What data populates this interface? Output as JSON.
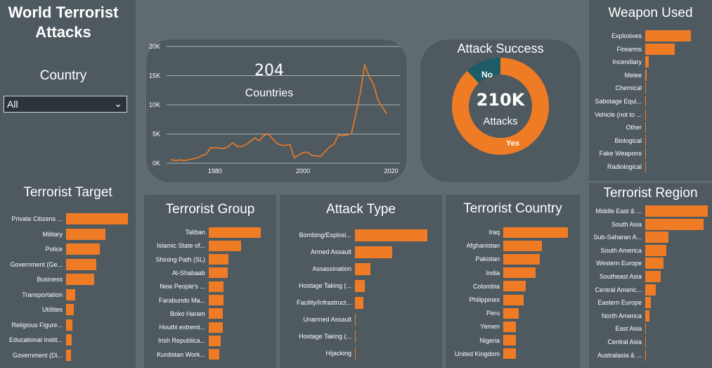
{
  "title": "World Terrorist Attacks",
  "country_filter": {
    "label": "Country",
    "value": "All"
  },
  "kpi": {
    "countries_value": "204",
    "countries_label": "Countries"
  },
  "attack_success": {
    "title": "Attack Success",
    "center_value": "210K",
    "center_label": "Attacks",
    "yes_label": "Yes",
    "no_label": "No",
    "yes_share": 0.88
  },
  "colors": {
    "accent": "#f07b25",
    "teal": "#1c5c66",
    "panel": "#4e5a60",
    "background": "#5f6b70"
  },
  "chart_data": [
    {
      "id": "timeline",
      "type": "line",
      "x": [
        1970,
        1971,
        1972,
        1973,
        1974,
        1975,
        1976,
        1977,
        1978,
        1979,
        1980,
        1981,
        1982,
        1983,
        1984,
        1985,
        1986,
        1987,
        1988,
        1989,
        1990,
        1991,
        1992,
        1994,
        1995,
        1996,
        1997,
        1998,
        1999,
        2000,
        2001,
        2002,
        2003,
        2004,
        2005,
        2006,
        2007,
        2008,
        2009,
        2010,
        2011,
        2012,
        2013,
        2014,
        2015,
        2016,
        2017,
        2018,
        2019
      ],
      "y": [
        650,
        470,
        570,
        470,
        580,
        740,
        920,
        1320,
        1530,
        2660,
        2660,
        2590,
        2540,
        2870,
        3500,
        2920,
        2860,
        3180,
        3720,
        4320,
        3890,
        4690,
        5070,
        3450,
        3080,
        3060,
        3200,
        930,
        1400,
        1810,
        1910,
        1330,
        1280,
        1160,
        2020,
        2760,
        3240,
        4800,
        4720,
        4830,
        5070,
        8500,
        11990,
        16870,
        14800,
        13560,
        10860,
        9600,
        8500
      ],
      "ylim": [
        0,
        20000
      ],
      "yticks": [
        "0K",
        "5K",
        "10K",
        "15K",
        "20K"
      ],
      "xticks": [
        "1980",
        "2000",
        "2020"
      ]
    },
    {
      "id": "weapon_used",
      "type": "bar",
      "title": "Weapon Used",
      "categories": [
        "Explosives",
        "Firearms",
        "Incendiary",
        "Melee",
        "Chemical",
        "Sabotage Equi...",
        "Vehicle (not to ...",
        "Other",
        "Biological",
        "Fake Weapons",
        "Radiological"
      ],
      "values": [
        106000,
        69000,
        8000,
        3300,
        270,
        140,
        130,
        110,
        30,
        30,
        15
      ]
    },
    {
      "id": "terrorist_region",
      "type": "bar",
      "title": "Terrorist Region",
      "categories": [
        "Middle East & ...",
        "South Asia",
        "Sub-Saharan A...",
        "South America",
        "Western Europe",
        "Southeast Asia",
        "Central Americ...",
        "Eastern Europe",
        "North America",
        "East Asia",
        "Central Asia",
        "Australasia & ..."
      ],
      "values": [
        57000,
        53000,
        21000,
        18900,
        16300,
        14000,
        9600,
        5000,
        3800,
        800,
        560,
        300
      ]
    },
    {
      "id": "terrorist_target",
      "type": "bar",
      "title": "Terrorist Target",
      "categories": [
        "Private Citizens ...",
        "Military",
        "Police",
        "Government (Ge...",
        "Business",
        "Transportation",
        "Utilities",
        "Religious Figure...",
        "Educational Instit...",
        "Government (Di..."
      ],
      "values": [
        50000,
        32000,
        27500,
        24500,
        22500,
        7200,
        6000,
        5000,
        4500,
        3800
      ]
    },
    {
      "id": "terrorist_group",
      "type": "bar",
      "title": "Terrorist Group",
      "categories": [
        "Taliban",
        "Islamic State of...",
        "Shining Path (SL)",
        "Al-Shabaab",
        "New People's ...",
        "Farabundo Ma...",
        "Boko Haram",
        "Houthi extremi...",
        "Irish Republica...",
        "Kurdistan Work..."
      ],
      "values": [
        12000,
        7400,
        4500,
        4400,
        3400,
        3350,
        3300,
        3200,
        2700,
        2500
      ]
    },
    {
      "id": "attack_type",
      "type": "bar",
      "title": "Attack Type",
      "categories": [
        "Bombing/Explosi...",
        "Armed Assault",
        "Assassination",
        "Hostage Taking (...",
        "Facility/Infrastruct...",
        "Unarmed Assault",
        "Hostage Taking (...",
        "Hijacking"
      ],
      "values": [
        100000,
        51000,
        21000,
        14000,
        12000,
        1000,
        900,
        700
      ]
    },
    {
      "id": "terrorist_country",
      "type": "bar",
      "title": "Terrorist Country",
      "categories": [
        "Iraq",
        "Afghanistan",
        "Pakistan",
        "India",
        "Colombia",
        "Philippines",
        "Peru",
        "Yemen",
        "Nigeria",
        "United Kingdom"
      ],
      "values": [
        25000,
        15000,
        14000,
        12500,
        8700,
        7800,
        6100,
        5000,
        5000,
        5000
      ]
    }
  ]
}
